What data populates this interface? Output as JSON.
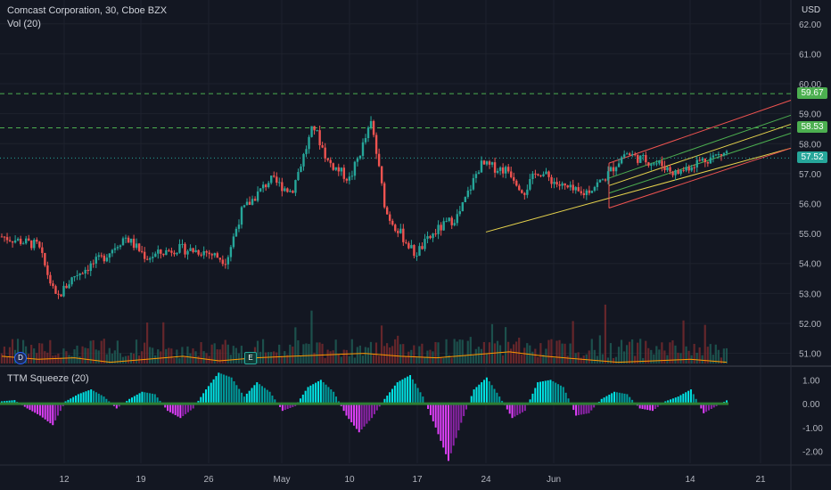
{
  "header": {
    "title": "Comcast Corporation, 30, Cboe BZX",
    "volume_label": "Vol (20)",
    "currency": "USD"
  },
  "indicator": {
    "label": "TTM Squeeze (20)"
  },
  "price_tags": [
    {
      "value": "59.67",
      "color": "#4caf50"
    },
    {
      "value": "58.53",
      "color": "#4caf50"
    },
    {
      "value": "57.52",
      "color": "#26a69a"
    }
  ],
  "events": [
    {
      "label": "D",
      "color": "#2962ff"
    },
    {
      "label": "E",
      "color": "#26a69a"
    }
  ],
  "chart_data": {
    "type": "candlestick",
    "x_ticks": [
      "12",
      "19",
      "26",
      "May",
      "10",
      "17",
      "24",
      "Jun",
      "14",
      "21"
    ],
    "y_ticks": [
      "62.00",
      "61.00",
      "60.00",
      "59.00",
      "58.00",
      "57.00",
      "56.00",
      "55.00",
      "54.00",
      "53.00",
      "52.00",
      "51.00"
    ],
    "y_range": [
      50.6,
      62.5
    ],
    "ind_ticks": [
      "1.00",
      "0.00",
      "-1.00",
      "-2.00"
    ],
    "ind_range": [
      -2.5,
      1.5
    ],
    "levels": [
      59.67,
      58.53,
      57.52
    ],
    "price_path": [
      [
        0,
        54.9
      ],
      [
        0.05,
        54.6
      ],
      [
        0.075,
        52.8
      ],
      [
        0.1,
        53.6
      ],
      [
        0.14,
        54.2
      ],
      [
        0.17,
        54.9
      ],
      [
        0.2,
        54.2
      ],
      [
        0.24,
        54.5
      ],
      [
        0.28,
        54.4
      ],
      [
        0.31,
        54.1
      ],
      [
        0.33,
        55.7
      ],
      [
        0.37,
        56.8
      ],
      [
        0.4,
        56.4
      ],
      [
        0.43,
        58.6
      ],
      [
        0.45,
        57.4
      ],
      [
        0.48,
        56.8
      ],
      [
        0.51,
        58.7
      ],
      [
        0.53,
        55.7
      ],
      [
        0.57,
        54.3
      ],
      [
        0.6,
        55.1
      ],
      [
        0.63,
        55.6
      ],
      [
        0.66,
        57.3
      ],
      [
        0.7,
        57.1
      ],
      [
        0.72,
        56.4
      ],
      [
        0.74,
        57.1
      ],
      [
        0.77,
        56.6
      ],
      [
        0.8,
        56.3
      ],
      [
        0.83,
        56.8
      ],
      [
        0.86,
        57.7
      ],
      [
        0.88,
        57.5
      ],
      [
        0.91,
        57.3
      ],
      [
        0.93,
        57.0
      ],
      [
        0.96,
        57.4
      ],
      [
        1,
        57.7
      ]
    ],
    "volume_ma": [
      50.9,
      50.8,
      50.85,
      50.7,
      50.8,
      50.9,
      50.75,
      50.85,
      50.9,
      50.95,
      51.0,
      50.9,
      50.85,
      50.95,
      51.05,
      50.9,
      50.8,
      50.7,
      50.75,
      50.8,
      50.7
    ],
    "squeeze": [
      0.1,
      0.15,
      -0.2,
      -0.5,
      -0.9,
      0.1,
      0.4,
      0.6,
      0.3,
      -0.2,
      0.2,
      0.5,
      0.4,
      -0.3,
      -0.6,
      -0.2,
      0.6,
      1.3,
      1.1,
      0.3,
      0.9,
      0.5,
      -0.3,
      -0.1,
      0.7,
      1.0,
      0.5,
      -0.5,
      -1.2,
      -0.6,
      0.2,
      0.9,
      1.2,
      0.3,
      -1.0,
      -2.4,
      -0.8,
      0.6,
      1.1,
      0.3,
      -0.6,
      -0.3,
      0.9,
      1.0,
      0.7,
      -0.5,
      -0.4,
      0.2,
      0.5,
      0.4,
      -0.2,
      -0.3,
      0.1,
      0.3,
      0.6,
      -0.4,
      -0.1,
      0.2
    ]
  }
}
